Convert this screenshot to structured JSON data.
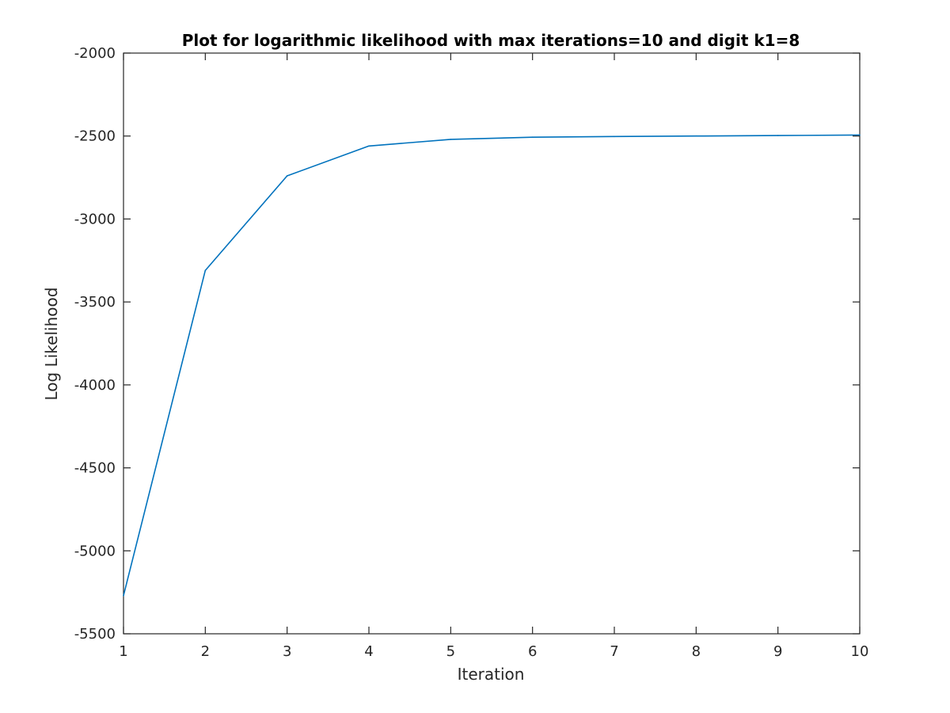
{
  "chart_data": {
    "type": "line",
    "title": "Plot for logarithmic likelihood with max iterations=10 and digit k1=8",
    "xlabel": "Iteration",
    "ylabel": "Log Likelihood",
    "xlim": [
      1,
      10
    ],
    "ylim": [
      -5500,
      -2000
    ],
    "xticks": [
      "1",
      "2",
      "3",
      "4",
      "5",
      "6",
      "7",
      "8",
      "9",
      "10"
    ],
    "yticks": [
      "-5500",
      "-5000",
      "-4500",
      "-4000",
      "-3500",
      "-3000",
      "-2500",
      "-2000"
    ],
    "grid": false,
    "legend": "none",
    "series": [
      {
        "color": "#0072bd",
        "x": [
          1,
          2,
          3,
          4,
          5,
          6,
          7,
          8,
          9,
          10
        ],
        "y": [
          -5270,
          -3310,
          -2740,
          -2560,
          -2520,
          -2507,
          -2503,
          -2500,
          -2497,
          -2494
        ]
      }
    ]
  }
}
